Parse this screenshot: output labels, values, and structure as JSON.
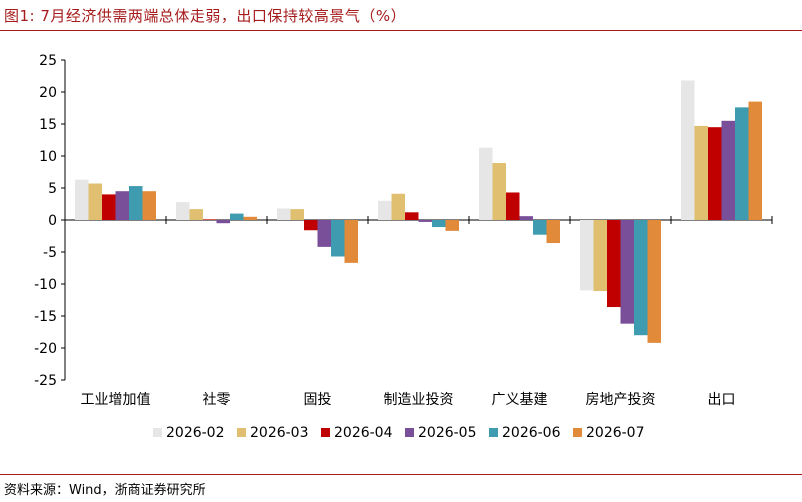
{
  "header": {
    "title": "图1:  7月经济供需两端总体走弱，出口保持较高景气（%）"
  },
  "footer": {
    "source": "资料来源：Wind，浙商证券研究所"
  },
  "chart_data": {
    "type": "bar",
    "categories": [
      "工业增加值",
      "社零",
      "固投",
      "制造业投资",
      "广义基建",
      "房地产投资",
      "出口"
    ],
    "series": [
      {
        "name": "2026-02",
        "color": "#e6e6e6",
        "values": [
          6.3,
          2.8,
          1.8,
          3.0,
          11.3,
          -11.0,
          21.8
        ]
      },
      {
        "name": "2026-03",
        "color": "#e0c070",
        "values": [
          5.7,
          1.7,
          1.7,
          4.1,
          8.9,
          -11.1,
          14.7
        ]
      },
      {
        "name": "2026-04",
        "color": "#c00000",
        "values": [
          4.0,
          0.1,
          -1.6,
          1.2,
          4.3,
          -13.6,
          14.5
        ]
      },
      {
        "name": "2026-05",
        "color": "#7a4f9a",
        "values": [
          4.5,
          -0.5,
          -4.2,
          -0.3,
          0.6,
          -16.2,
          15.5
        ]
      },
      {
        "name": "2026-06",
        "color": "#3e9bb0",
        "values": [
          5.3,
          1.0,
          -5.7,
          -1.1,
          -2.3,
          -18.0,
          17.6
        ]
      },
      {
        "name": "2026-07",
        "color": "#e08a3a",
        "values": [
          4.5,
          0.5,
          -6.7,
          -1.7,
          -3.6,
          -19.2,
          18.5
        ]
      }
    ],
    "ylim": [
      -25,
      25
    ],
    "yticks": [
      -25,
      -20,
      -15,
      -10,
      -5,
      0,
      5,
      10,
      15,
      20,
      25
    ],
    "legend_position": "bottom",
    "grid": false
  }
}
